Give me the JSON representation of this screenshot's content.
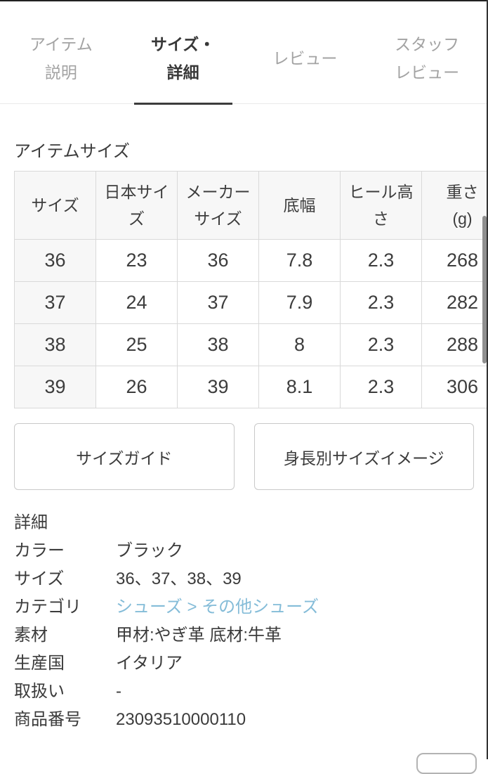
{
  "tabs": [
    {
      "label": "アイテム\n説明",
      "active": false
    },
    {
      "label": "サイズ・\n詳細",
      "active": true
    },
    {
      "label": "レビュー",
      "active": false
    },
    {
      "label": "スタッフ\nレビュー",
      "active": false
    }
  ],
  "size_section": {
    "heading": "アイテムサイズ",
    "table": {
      "headers": [
        "サイズ",
        "日本サイズ",
        "メーカーサイズ",
        "底幅",
        "ヒール高さ",
        "重さ\n(g)"
      ],
      "rows": [
        [
          "36",
          "23",
          "36",
          "7.8",
          "2.3",
          "268"
        ],
        [
          "37",
          "24",
          "37",
          "7.9",
          "2.3",
          "282"
        ],
        [
          "38",
          "25",
          "38",
          "8",
          "2.3",
          "288"
        ],
        [
          "39",
          "26",
          "39",
          "8.1",
          "2.3",
          "306"
        ]
      ]
    },
    "buttons": {
      "size_guide": "サイズガイド",
      "height_size_image": "身長別サイズイメージ"
    }
  },
  "details_section": {
    "heading": "詳細",
    "rows": [
      {
        "label": "カラー",
        "value": "ブラック",
        "link": false
      },
      {
        "label": "サイズ",
        "value": "36、37、38、39",
        "link": false
      },
      {
        "label": "カテゴリ",
        "value": "シューズ > その他シューズ",
        "link": true
      },
      {
        "label": "素材",
        "value": "甲材:やぎ革 底材:牛革",
        "link": false
      },
      {
        "label": "生産国",
        "value": "イタリア",
        "link": false
      },
      {
        "label": "取扱い",
        "value": "-",
        "link": false
      },
      {
        "label": "商品番号",
        "value": "23093510000110",
        "link": false
      }
    ]
  },
  "colors": {
    "link_blue": "#84bcd8",
    "active_tab": "#383838",
    "inactive_tab": "#a3a3a3",
    "table_border": "#d9d9d9",
    "table_header_bg": "#f7f7f7"
  }
}
